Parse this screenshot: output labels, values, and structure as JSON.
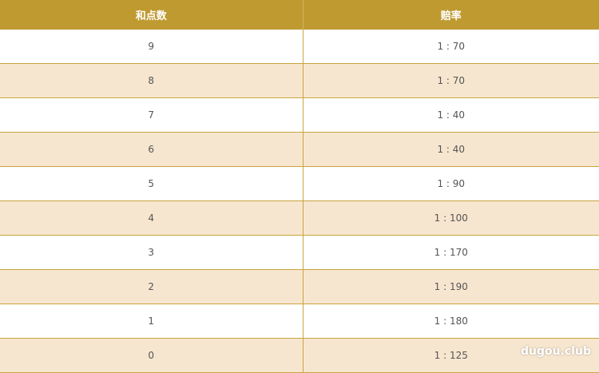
{
  "table": {
    "header": [
      "和点数",
      "赔率"
    ],
    "rows": [
      [
        "9",
        "1 : 70"
      ],
      [
        "8",
        "1 : 70"
      ],
      [
        "7",
        "1 : 40"
      ],
      [
        "6",
        "1 : 40"
      ],
      [
        "5",
        "1 : 90"
      ],
      [
        "4",
        "1 : 100"
      ],
      [
        "3",
        "1 : 170"
      ],
      [
        "2",
        "1 : 190"
      ],
      [
        "1",
        "1 : 180"
      ],
      [
        "0",
        "1 : 125"
      ]
    ]
  },
  "watermark": "dugou.club"
}
